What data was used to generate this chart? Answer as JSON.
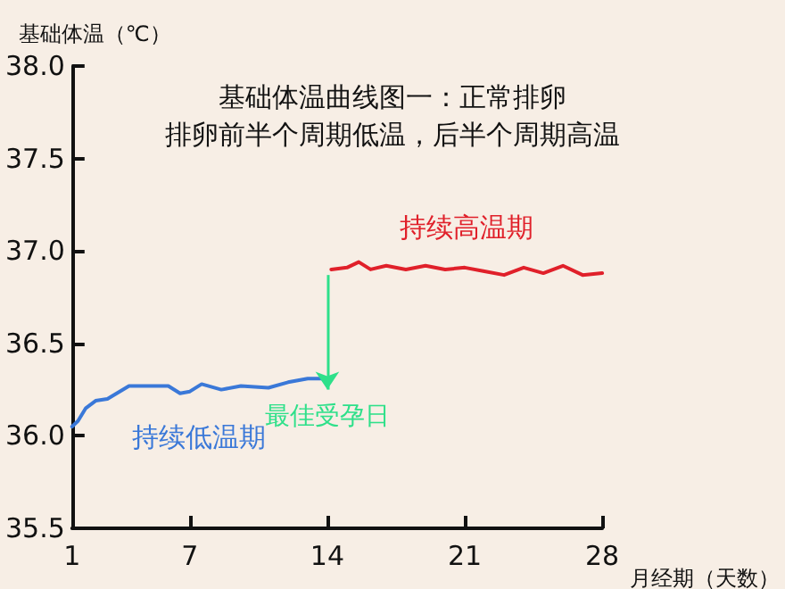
{
  "chart_data": {
    "type": "line",
    "title": "基础体温曲线图一：正常排卵",
    "subtitle": "排卵前半个周期低温，后半个周期高温",
    "xlabel": "月经期（天数）",
    "ylabel": "基础体温（℃）",
    "xlim": [
      1,
      28
    ],
    "xticks": [
      1,
      7,
      14,
      21,
      28
    ],
    "ylim": [
      35.5,
      38
    ],
    "yticks": [
      35.5,
      {
        "value": 36,
        "label": "36.0"
      },
      36.5,
      {
        "value": 37,
        "label": "37.0"
      },
      37.5,
      {
        "value": 38,
        "label": "38.0"
      }
    ],
    "grid": false,
    "legend": false,
    "marker": "none",
    "line_style": "solid",
    "series": [
      {
        "name": "持续低温期",
        "color": "#3a78d8",
        "x": [
          1,
          1.3,
          1.7,
          2.2,
          2.8,
          3.9,
          5.9,
          6.5,
          7,
          7.6,
          8.6,
          9.6,
          11,
          12,
          13,
          13.9
        ],
        "values": [
          36.05,
          36.08,
          36.15,
          36.19,
          36.2,
          36.27,
          36.27,
          36.23,
          36.24,
          36.28,
          36.25,
          36.27,
          36.26,
          36.29,
          36.31,
          36.31
        ]
      },
      {
        "name": "持续高温期",
        "color": "#e0202a",
        "x": [
          14.2,
          15,
          15.6,
          16.2,
          17,
          18,
          19,
          20,
          21,
          22,
          23,
          24,
          25,
          26,
          27,
          28
        ],
        "values": [
          36.9,
          36.91,
          36.94,
          36.9,
          36.92,
          36.9,
          36.92,
          36.9,
          36.91,
          36.89,
          36.87,
          36.91,
          36.88,
          36.92,
          36.87,
          36.88
        ]
      }
    ],
    "annotations": [
      {
        "text": "最佳受孕日",
        "x": 14,
        "y": 36.25
      }
    ]
  }
}
